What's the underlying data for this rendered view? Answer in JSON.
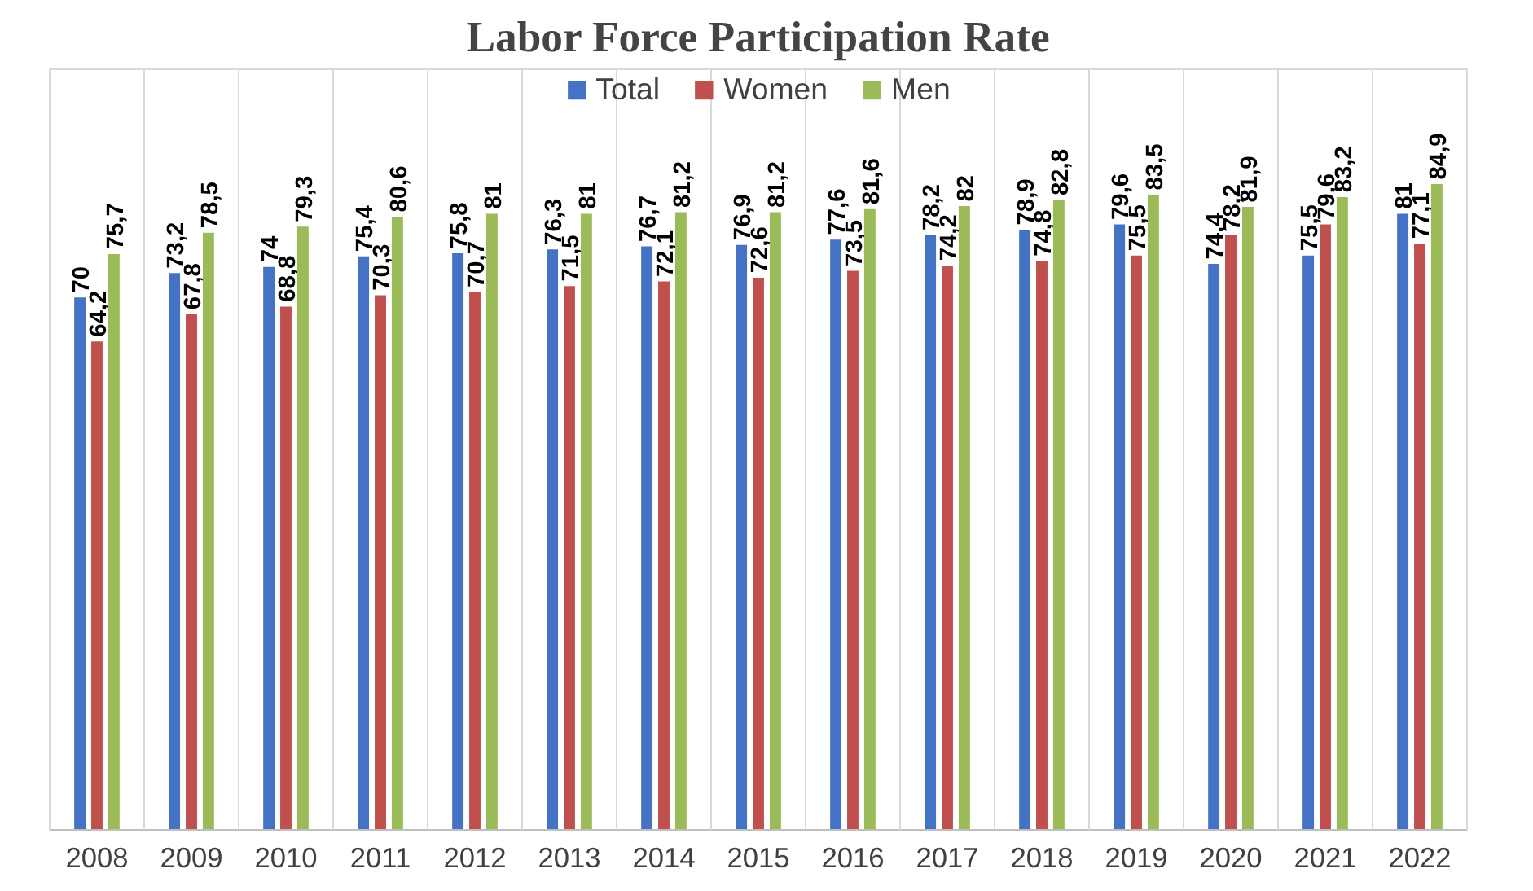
{
  "chart_data": {
    "type": "bar",
    "title": "Labor Force Participation Rate",
    "categories": [
      "2008",
      "2009",
      "2010",
      "2011",
      "2012",
      "2013",
      "2014",
      "2015",
      "2016",
      "2017",
      "2018",
      "2019",
      "2020",
      "2021",
      "2022"
    ],
    "series": [
      {
        "name": "Total",
        "color": "#4472c4",
        "values": [
          70,
          73.2,
          74,
          75.4,
          75.8,
          76.3,
          76.7,
          76.9,
          77.6,
          78.2,
          78.9,
          79.6,
          74.4,
          75.5,
          81
        ],
        "value_labels": [
          "70",
          "73,2",
          "74",
          "75,4",
          "75,8",
          "76,3",
          "76,7",
          "76,9",
          "77,6",
          "78,2",
          "78,9",
          "79,6",
          "74,4",
          "75,5",
          "81"
        ]
      },
      {
        "name": "Women",
        "color": "#c0504d",
        "values": [
          64.2,
          67.8,
          68.8,
          70.3,
          70.7,
          71.5,
          72.1,
          72.6,
          73.5,
          74.2,
          74.8,
          75.5,
          78.2,
          79.6,
          77.1
        ],
        "value_labels": [
          "64,2",
          "67,8",
          "68,8",
          "70,3",
          "70,7",
          "71,5",
          "72,1",
          "72,6",
          "73,5",
          "74,2",
          "74,8",
          "75,5",
          "78,2",
          "79,6",
          "77,1"
        ]
      },
      {
        "name": "Men",
        "color": "#9bbb59",
        "values": [
          75.7,
          78.5,
          79.3,
          80.6,
          81,
          81,
          81.2,
          81.2,
          81.6,
          82,
          82.8,
          83.5,
          81.9,
          83.2,
          84.9
        ],
        "value_labels": [
          "75,7",
          "78,5",
          "79,3",
          "80,6",
          "81",
          "81",
          "81,2",
          "81,2",
          "81,6",
          "82",
          "82,8",
          "83,5",
          "81,9",
          "83,2",
          "84,9"
        ]
      }
    ],
    "ylim": [
      0,
      100
    ],
    "grid": "x",
    "legend": "top",
    "tick_labels": "x"
  }
}
